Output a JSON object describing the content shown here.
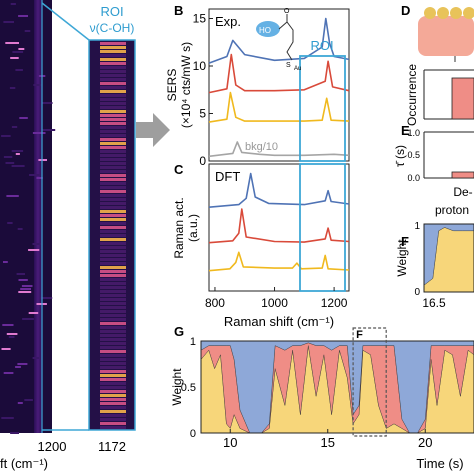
{
  "panel_letters": {
    "b": "B",
    "c": "C",
    "d": "D",
    "e": "E",
    "f_small": "F",
    "f_callout": "F",
    "g": "G"
  },
  "heatmap": {
    "roi_label": "ROI",
    "roi_sublabel": "ν(C-OH)",
    "left_xtick": "1200",
    "left_xlabel_partial": "ft (cm⁻¹)",
    "zoom_xtick": "1172"
  },
  "colors": {
    "sers_blue": "#4f73b5",
    "sers_red": "#d94a3a",
    "sers_yellow": "#f0b91e",
    "bkg_gray": "#a5a5a5",
    "roi_box": "#3ea7d6",
    "weight_blue": "#8ea8d8",
    "weight_red": "#ef8d86",
    "weight_yellow": "#f7d67a",
    "bar_red": "#ef8d86",
    "heatmap_bg": "#1b0b3a"
  },
  "panel_b": {
    "label_exp": "Exp.",
    "roi_label": "ROI",
    "ylabel_line1": "SERS",
    "ylabel_line2": "(×10⁴ cts/mW s)",
    "bkg_label": "bkg/10",
    "molecule_ho": "HO",
    "molecule_o": "O",
    "molecule_s": "S",
    "molecule_au": "Au",
    "yticks": [
      "0",
      "5",
      "10",
      "15"
    ]
  },
  "panel_c": {
    "label_dft": "DFT",
    "ylabel_line1": "Raman act.",
    "ylabel_line2": "(a.u.)",
    "xticks": [
      "800",
      "1000",
      "1200"
    ],
    "xlabel": "Raman shift (cm⁻¹)"
  },
  "panel_d": {
    "ylabel": "Occurrence"
  },
  "panel_e": {
    "ylabel": "τ̄ (s)",
    "yticks": [
      "1.0",
      "0.5",
      "0.0"
    ]
  },
  "panel_d_bottom": {
    "category_line1": "De-",
    "category_line2": "proton"
  },
  "panel_f": {
    "ylabel": "Weight",
    "yticks": [
      "1",
      "0"
    ],
    "xtick": "16.5"
  },
  "panel_g": {
    "ylabel": "Weight",
    "yticks": [
      "1",
      "0.5",
      "0"
    ],
    "xticks": [
      "10",
      "15",
      "20"
    ],
    "xlabel": "Time (s)",
    "xlim": [
      8.5,
      22.5
    ],
    "callout_range": [
      16.3,
      18.0
    ]
  },
  "chart_data": [
    {
      "type": "line",
      "panel": "B",
      "xlabel": "",
      "ylabel": "SERS (×10⁴ cts/mW s)",
      "xlim": [
        780,
        1250
      ],
      "ylim": [
        0,
        16
      ],
      "series": [
        {
          "color": "#4f73b5",
          "x": [
            780,
            840,
            860,
            900,
            1000,
            1100,
            1160,
            1172,
            1185,
            1200,
            1250
          ],
          "y": [
            10.3,
            11.0,
            12.7,
            11.2,
            10.6,
            10.8,
            12.0,
            15.0,
            12.4,
            11.0,
            10.7
          ]
        },
        {
          "color": "#d94a3a",
          "x": [
            780,
            840,
            855,
            870,
            900,
            1000,
            1100,
            1170,
            1180,
            1195,
            1250
          ],
          "y": [
            7.2,
            7.6,
            11.2,
            8.0,
            7.4,
            7.4,
            7.5,
            8.4,
            10.5,
            7.8,
            7.4
          ]
        },
        {
          "color": "#f0b91e",
          "x": [
            780,
            840,
            852,
            870,
            900,
            1000,
            1100,
            1160,
            1175,
            1190,
            1250
          ],
          "y": [
            4.1,
            4.4,
            7.2,
            4.6,
            4.2,
            4.2,
            4.2,
            4.3,
            6.6,
            4.3,
            4.2
          ]
        },
        {
          "color": "#a5a5a5",
          "name": "bkg/10",
          "x": [
            780,
            860,
            875,
            890,
            950,
            1000,
            1100,
            1200,
            1250
          ],
          "y": [
            0.5,
            0.8,
            2.0,
            0.9,
            0.7,
            0.6,
            0.6,
            0.7,
            0.6
          ]
        }
      ]
    },
    {
      "type": "line",
      "panel": "C",
      "xlabel": "Raman shift (cm⁻¹)",
      "ylabel": "Raman act. (a.u.)",
      "xlim": [
        780,
        1250
      ],
      "ylim": [
        0,
        20
      ],
      "series": [
        {
          "color": "#4f73b5",
          "x": [
            780,
            880,
            905,
            920,
            935,
            980,
            1100,
            1170,
            1180,
            1190,
            1250
          ],
          "y": [
            13.2,
            13.6,
            14.6,
            18.5,
            14.8,
            13.8,
            13.6,
            14.2,
            15.8,
            14.1,
            13.7
          ]
        },
        {
          "color": "#d94a3a",
          "x": [
            780,
            860,
            880,
            890,
            905,
            1000,
            1100,
            1170,
            1180,
            1190,
            1250
          ],
          "y": [
            7.6,
            7.9,
            9.1,
            12.9,
            8.5,
            7.8,
            7.7,
            8.2,
            9.9,
            8.0,
            7.8
          ]
        },
        {
          "color": "#f0b91e",
          "x": [
            780,
            850,
            870,
            880,
            895,
            1000,
            1060,
            1075,
            1090,
            1160,
            1170,
            1180,
            1250
          ],
          "y": [
            3.2,
            3.5,
            4.5,
            6.1,
            3.8,
            3.6,
            3.6,
            4.4,
            3.5,
            3.6,
            5.6,
            3.5,
            3.3
          ]
        }
      ]
    },
    {
      "type": "area",
      "panel": "G",
      "xlabel": "Time (s)",
      "ylabel": "Weight",
      "xlim": [
        8.5,
        22.5
      ],
      "ylim": [
        0,
        1
      ],
      "x": [
        8.5,
        8.9,
        9.2,
        9.5,
        9.8,
        10.0,
        10.2,
        10.5,
        11.0,
        11.6,
        12.0,
        12.3,
        12.8,
        13.2,
        13.6,
        14.0,
        14.4,
        14.8,
        15.2,
        15.6,
        16.0,
        16.3,
        16.6,
        16.8,
        17.2,
        17.6,
        18.0,
        18.4,
        18.8,
        19.2,
        19.6,
        20.0,
        20.3,
        20.6,
        21.0,
        21.4,
        21.8,
        22.2,
        22.5
      ],
      "series": [
        {
          "color": "#f7d67a",
          "values": [
            0.8,
            0.9,
            0.7,
            0.85,
            0.1,
            0.05,
            0.2,
            0.05,
            0.0,
            0.0,
            0.05,
            0.7,
            0.3,
            0.9,
            0.2,
            0.95,
            0.4,
            0.85,
            0.2,
            0.9,
            0.6,
            0.1,
            0.2,
            0.9,
            0.85,
            0.3,
            0.05,
            0.1,
            0.05,
            0.0,
            0.0,
            0.05,
            0.8,
            0.3,
            0.9,
            0.85,
            0.4,
            0.9,
            0.85
          ]
        },
        {
          "color": "#ef8d86",
          "values": [
            0.1,
            0.05,
            0.25,
            0.1,
            0.85,
            0.9,
            0.6,
            0.2,
            0.0,
            0.0,
            0.05,
            0.25,
            0.6,
            0.05,
            0.75,
            0.03,
            0.55,
            0.1,
            0.7,
            0.05,
            0.35,
            0.1,
            0.1,
            0.05,
            0.1,
            0.65,
            0.9,
            0.85,
            0.1,
            0.0,
            0.0,
            0.1,
            0.15,
            0.65,
            0.05,
            0.1,
            0.55,
            0.05,
            0.1
          ]
        },
        {
          "color": "#8ea8d8",
          "values": [
            0.1,
            0.05,
            0.05,
            0.05,
            0.05,
            0.05,
            0.2,
            0.75,
            1.0,
            1.0,
            0.9,
            0.05,
            0.1,
            0.05,
            0.05,
            0.02,
            0.05,
            0.05,
            0.1,
            0.05,
            0.05,
            0.8,
            0.7,
            0.05,
            0.05,
            0.05,
            0.05,
            0.05,
            0.85,
            1.0,
            1.0,
            0.85,
            0.05,
            0.05,
            0.05,
            0.05,
            0.05,
            0.05,
            0.05
          ]
        }
      ]
    },
    {
      "type": "area",
      "panel": "F",
      "ylabel": "Weight",
      "xlim": [
        16.3,
        18.0
      ],
      "ylim": [
        0,
        1
      ],
      "x": [
        16.3,
        16.6,
        16.8,
        17.0,
        17.3,
        17.6,
        18.0
      ],
      "series": [
        {
          "color": "#f7d67a",
          "values": [
            0.1,
            0.2,
            0.9,
            0.95,
            0.9,
            0.9,
            0.9
          ]
        },
        {
          "color": "#8ea8d8",
          "values": [
            0.9,
            0.8,
            0.1,
            0.05,
            0.1,
            0.1,
            0.1
          ]
        }
      ]
    }
  ]
}
